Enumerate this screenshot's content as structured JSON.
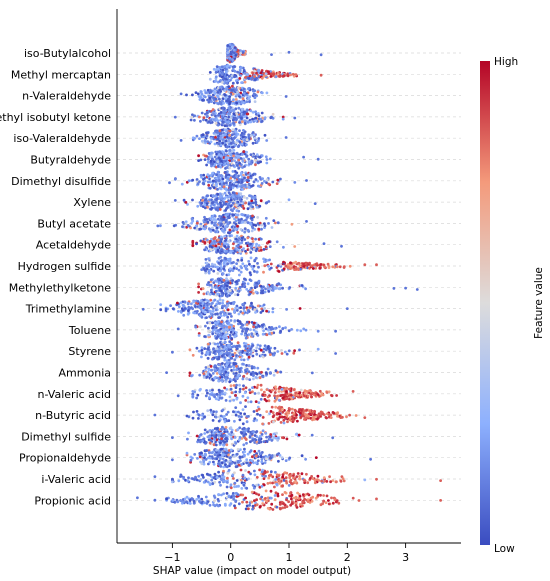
{
  "chart_data": {
    "type": "scatter",
    "subtype": "shap-beeswarm",
    "title": "",
    "xlabel": "SHAP value (impact on model output)",
    "ylabel": "",
    "xlim": [
      -1.95,
      3.95
    ],
    "xticks": [
      -1,
      0,
      1,
      2,
      3
    ],
    "xtick_labels": [
      "−1",
      "0",
      "1",
      "2",
      "3"
    ],
    "grid": "horizontal dashed lines per feature",
    "colorbar": {
      "label": "Feature value",
      "high_label": "High",
      "low_label": "Low",
      "colors": [
        "#3a4cc0",
        "#8db0fe",
        "#dddcdc",
        "#f49a7b",
        "#b40426"
      ]
    },
    "features": [
      {
        "name": "iso-Butylalcohol",
        "min": -0.05,
        "max": 0.25,
        "center": 0.0,
        "high": 0.1,
        "low": -0.02,
        "high_mix": 0.15,
        "outliers": [
          0.7,
          1.0,
          1.55
        ]
      },
      {
        "name": "Methyl mercaptan",
        "min": -0.35,
        "max": 1.25,
        "center": 0.0,
        "high": 0.6,
        "low": -0.05,
        "high_mix": 0.35,
        "outliers": [
          -0.25,
          1.55
        ]
      },
      {
        "name": "n-Valeraldehyde",
        "min": -0.85,
        "max": 0.85,
        "center": 0.0,
        "high": 0.05,
        "low": -0.05,
        "high_mix": 0.1,
        "outliers": [
          -0.85,
          0.95
        ]
      },
      {
        "name": "Methyl isobutyl ketone",
        "min": -0.8,
        "max": 0.9,
        "center": 0.0,
        "high": 0.05,
        "low": -0.05,
        "high_mix": 0.1,
        "outliers": [
          -0.95,
          1.1
        ]
      },
      {
        "name": "iso-Valeraldehyde",
        "min": -0.7,
        "max": 0.8,
        "center": 0.0,
        "high": 0.05,
        "low": -0.05,
        "high_mix": 0.1,
        "outliers": [
          -0.85,
          0.95
        ]
      },
      {
        "name": "Butyraldehyde",
        "min": -0.55,
        "max": 1.0,
        "center": 0.0,
        "high": 0.05,
        "low": -0.05,
        "high_mix": 0.1,
        "outliers": [
          1.25,
          1.5
        ]
      },
      {
        "name": "Dimethyl disulfide",
        "min": -0.95,
        "max": 1.1,
        "center": 0.0,
        "high": 0.05,
        "low": -0.05,
        "high_mix": 0.1,
        "outliers": [
          -1.05,
          1.3
        ]
      },
      {
        "name": "Xylene",
        "min": -0.8,
        "max": 1.0,
        "center": 0.0,
        "high": 0.05,
        "low": -0.05,
        "high_mix": 0.1,
        "outliers": [
          -0.95,
          1.45
        ]
      },
      {
        "name": "Butyl acetate",
        "min": -1.3,
        "max": 1.05,
        "center": 0.0,
        "high": 0.05,
        "low": -0.05,
        "high_mix": 0.1,
        "outliers": [
          -1.25,
          1.3
        ]
      },
      {
        "name": "Acetaldehyde",
        "min": -0.65,
        "max": 1.2,
        "center": 0.05,
        "high": 0.1,
        "low": -0.05,
        "high_mix": 0.2,
        "outliers": [
          1.6,
          1.9
        ]
      },
      {
        "name": "Hydrogen sulfide",
        "min": -0.75,
        "max": 2.05,
        "center": 0.1,
        "high": 1.3,
        "low": 0.0,
        "high_mix": 0.45,
        "outliers": [
          2.3,
          2.5
        ]
      },
      {
        "name": "Methylethylketone",
        "min": -0.55,
        "max": 1.6,
        "center": 0.0,
        "high": 0.1,
        "low": -0.05,
        "high_mix": 0.1,
        "outliers": [
          2.8,
          3.0,
          3.2
        ]
      },
      {
        "name": "Trimethylamine",
        "min": -1.2,
        "max": 1.3,
        "center": -0.3,
        "high": 0.05,
        "low": -0.35,
        "high_mix": 0.1,
        "outliers": [
          -1.5,
          2.0
        ]
      },
      {
        "name": "Toluene",
        "min": -0.6,
        "max": 1.5,
        "center": 0.0,
        "high": 0.05,
        "low": -0.05,
        "high_mix": 0.1,
        "outliers": [
          -0.9,
          1.8
        ]
      },
      {
        "name": "Styrene",
        "min": -0.7,
        "max": 1.5,
        "center": 0.0,
        "high": 0.05,
        "low": -0.05,
        "high_mix": 0.1,
        "outliers": [
          -1.0,
          1.8
        ]
      },
      {
        "name": "Ammonia",
        "min": -0.7,
        "max": 1.1,
        "center": 0.0,
        "high": 0.05,
        "low": -0.05,
        "high_mix": 0.1,
        "outliers": [
          -1.1,
          1.4
        ]
      },
      {
        "name": "n-Valeric acid",
        "min": -0.65,
        "max": 1.95,
        "center": 0.3,
        "high": 1.0,
        "low": -0.15,
        "high_mix": 0.65,
        "outliers": [
          -0.9,
          2.1
        ]
      },
      {
        "name": "n-Butyric acid",
        "min": -0.75,
        "max": 2.15,
        "center": 0.5,
        "high": 1.2,
        "low": -0.1,
        "high_mix": 0.65,
        "outliers": [
          -1.3,
          2.3
        ]
      },
      {
        "name": "Dimethyl sulfide",
        "min": -0.8,
        "max": 1.5,
        "center": 0.0,
        "high": 0.2,
        "low": -0.05,
        "high_mix": 0.15,
        "outliers": [
          -1.0,
          1.75
        ]
      },
      {
        "name": "Propionaldehyde",
        "min": -0.75,
        "max": 1.6,
        "center": 0.0,
        "high": 0.1,
        "low": -0.05,
        "high_mix": 0.1,
        "outliers": [
          -1.0,
          2.4
        ]
      },
      {
        "name": "i-Valeric acid",
        "min": -1.0,
        "max": 2.3,
        "center": 0.3,
        "high": 1.0,
        "low": -0.1,
        "high_mix": 0.45,
        "outliers": [
          -1.3,
          2.5,
          3.6
        ]
      },
      {
        "name": "Propionic acid",
        "min": -1.1,
        "max": 2.2,
        "center": 0.6,
        "high": 1.0,
        "low": -0.25,
        "high_mix": 0.55,
        "outliers": [
          -1.6,
          -1.3,
          2.5,
          3.6
        ]
      }
    ]
  }
}
